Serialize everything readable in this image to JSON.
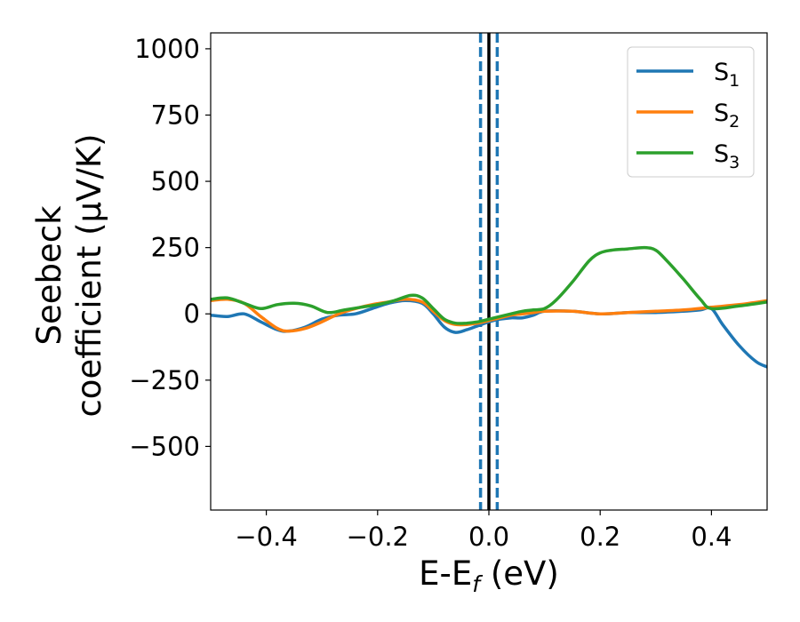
{
  "chart_data": {
    "type": "line",
    "xlabel": {
      "main": "E-E",
      "sub": "f",
      "tail": " (eV)"
    },
    "ylabel": {
      "line1": "Seebeck",
      "line2": "coefficient  (μV/K)"
    },
    "xlim": [
      -0.5,
      0.5
    ],
    "ylim": [
      -740,
      1060
    ],
    "xticks": [
      -0.4,
      -0.2,
      0.0,
      0.2,
      0.4
    ],
    "xtick_labels": [
      "−0.4",
      "−0.2",
      "0.0",
      "0.2",
      "0.4"
    ],
    "yticks": [
      1000,
      750,
      500,
      250,
      0,
      -250,
      -500
    ],
    "ytick_labels": [
      "1000",
      "750",
      "500",
      "250",
      "0",
      "−250",
      "−500"
    ],
    "grid": false,
    "legend_position": "top-right",
    "vlines": [
      {
        "x": 0.0,
        "style": "solid",
        "color": "#000000"
      },
      {
        "x": -0.015,
        "style": "dashed",
        "color": "#1f77b4"
      },
      {
        "x": 0.015,
        "style": "dashed",
        "color": "#1f77b4"
      }
    ],
    "series": [
      {
        "name": "S",
        "sub": "1",
        "color": "#1f77b4",
        "x": [
          -0.5,
          -0.47,
          -0.44,
          -0.41,
          -0.38,
          -0.36,
          -0.33,
          -0.3,
          -0.27,
          -0.24,
          -0.21,
          -0.18,
          -0.15,
          -0.12,
          -0.1,
          -0.08,
          -0.06,
          -0.04,
          -0.02,
          0.0,
          0.02,
          0.04,
          0.06,
          0.08,
          0.1,
          0.15,
          0.2,
          0.25,
          0.3,
          0.35,
          0.38,
          0.4,
          0.42,
          0.45,
          0.48,
          0.5
        ],
        "y": [
          -5,
          -10,
          0,
          -30,
          -60,
          -65,
          -50,
          -20,
          -5,
          0,
          20,
          40,
          50,
          40,
          0,
          -50,
          -70,
          -60,
          -45,
          -30,
          -20,
          -15,
          -15,
          -5,
          10,
          10,
          0,
          5,
          5,
          10,
          15,
          20,
          -40,
          -120,
          -180,
          -200
        ]
      },
      {
        "name": "S",
        "sub": "2",
        "color": "#ff7f0e",
        "x": [
          -0.5,
          -0.47,
          -0.44,
          -0.41,
          -0.38,
          -0.36,
          -0.33,
          -0.3,
          -0.27,
          -0.24,
          -0.21,
          -0.18,
          -0.15,
          -0.12,
          -0.1,
          -0.08,
          -0.06,
          -0.04,
          -0.02,
          0.0,
          0.02,
          0.04,
          0.06,
          0.08,
          0.1,
          0.15,
          0.2,
          0.25,
          0.3,
          0.35,
          0.4,
          0.45,
          0.5
        ],
        "y": [
          50,
          55,
          40,
          -10,
          -55,
          -65,
          -55,
          -30,
          0,
          20,
          35,
          45,
          55,
          45,
          10,
          -25,
          -40,
          -40,
          -35,
          -25,
          -15,
          -5,
          0,
          5,
          10,
          10,
          0,
          5,
          10,
          15,
          25,
          35,
          50
        ]
      },
      {
        "name": "S",
        "sub": "3",
        "color": "#2ca02c",
        "x": [
          -0.5,
          -0.47,
          -0.44,
          -0.41,
          -0.38,
          -0.35,
          -0.32,
          -0.29,
          -0.26,
          -0.23,
          -0.2,
          -0.17,
          -0.14,
          -0.12,
          -0.1,
          -0.08,
          -0.06,
          -0.04,
          -0.02,
          0.0,
          0.02,
          0.04,
          0.06,
          0.08,
          0.1,
          0.12,
          0.15,
          0.18,
          0.2,
          0.22,
          0.25,
          0.28,
          0.3,
          0.32,
          0.35,
          0.38,
          0.4,
          0.45,
          0.5
        ],
        "y": [
          55,
          60,
          40,
          20,
          35,
          40,
          30,
          5,
          15,
          25,
          35,
          50,
          70,
          60,
          20,
          -20,
          -35,
          -35,
          -30,
          -20,
          -10,
          0,
          10,
          15,
          20,
          50,
          120,
          200,
          230,
          240,
          245,
          250,
          240,
          200,
          130,
          55,
          20,
          30,
          45
        ]
      }
    ]
  }
}
